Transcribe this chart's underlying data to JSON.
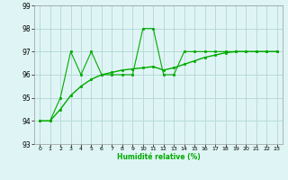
{
  "xlabel": "Humidité relative (%)",
  "ylabel": "",
  "bg_color": "#dff5f5",
  "grid_color": "#b8dada",
  "line_color": "#00aa00",
  "x_min": 0,
  "x_max": 23,
  "y_min": 93,
  "y_max": 99,
  "x_ticks": [
    0,
    1,
    2,
    3,
    4,
    5,
    6,
    7,
    8,
    9,
    10,
    11,
    12,
    13,
    14,
    15,
    16,
    17,
    18,
    19,
    20,
    21,
    22,
    23
  ],
  "y_ticks": [
    93,
    94,
    95,
    96,
    97,
    98,
    99
  ],
  "series1_x": [
    0,
    1,
    2,
    3,
    4,
    5,
    6,
    7,
    8,
    9,
    10,
    11,
    12,
    13,
    14,
    15,
    16,
    17,
    18,
    19,
    20,
    21,
    22,
    23
  ],
  "series1_y": [
    94,
    94,
    95,
    97,
    96,
    97,
    96,
    96,
    96,
    96,
    98,
    98,
    96,
    96,
    97,
    97,
    97,
    97,
    97,
    97,
    97,
    97,
    97,
    97
  ],
  "series2_x": [
    0,
    1,
    2,
    3,
    4,
    5,
    6,
    7,
    8,
    9,
    10,
    11,
    12,
    13,
    14,
    15,
    16,
    17,
    18,
    19,
    20,
    21,
    22,
    23
  ],
  "series2_y": [
    94,
    94,
    94.5,
    95.1,
    95.5,
    95.8,
    96.0,
    96.1,
    96.2,
    96.25,
    96.3,
    96.35,
    96.2,
    96.3,
    96.45,
    96.6,
    96.75,
    96.85,
    96.95,
    97.0,
    97.0,
    97.0,
    97.0,
    97.0
  ]
}
